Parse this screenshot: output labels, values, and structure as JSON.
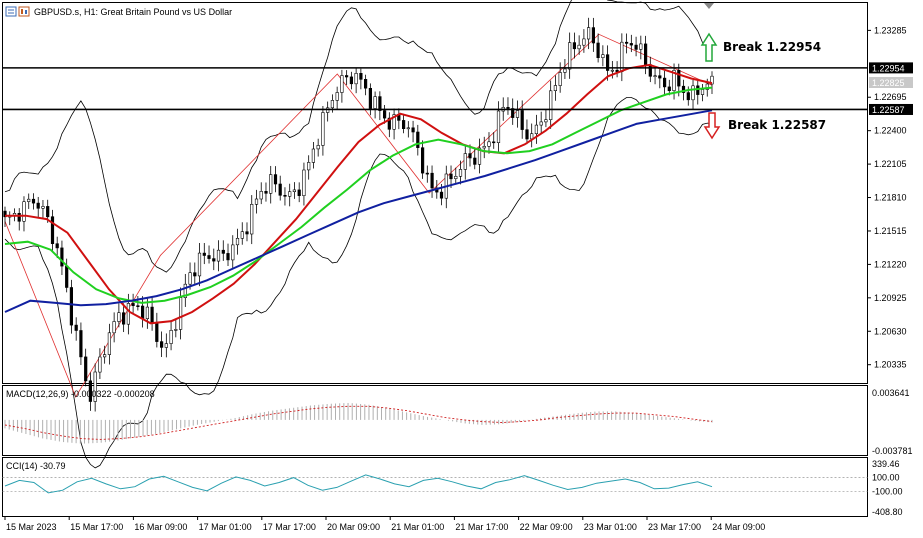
{
  "header": {
    "symbol_title": "GBPUSD.s, H1:  Great Britain Pound vs US Dollar",
    "icons": [
      "chart-window-icon",
      "candles-icon"
    ]
  },
  "annotations": {
    "break_up": "Break 1.22954",
    "break_down": "Break 1.22587",
    "up_arrow_color": "#22a73a",
    "down_arrow_color": "#d62020"
  },
  "chart_data": [
    {
      "type": "candlestick",
      "panel": "price",
      "symbol": "GBPUSD.s",
      "timeframe": "H1",
      "ylim": [
        1.202,
        1.235
      ],
      "y_ticks": [
        "1.23285",
        "1.22695",
        "1.22400",
        "1.22105",
        "1.21810",
        "1.21515",
        "1.21220",
        "1.20925",
        "1.20630",
        "1.20335"
      ],
      "price_tags": [
        {
          "value": "1.22954",
          "style": "black"
        },
        {
          "value": "1.22825",
          "style": "grey"
        },
        {
          "value": "1.22587",
          "style": "black"
        }
      ],
      "horizontal_lines": [
        1.22954,
        1.22587
      ],
      "x_labels": [
        "15 Mar 2023",
        "15 Mar 17:00",
        "16 Mar 09:00",
        "17 Mar 01:00",
        "17 Mar 17:00",
        "20 Mar 09:00",
        "21 Mar 01:00",
        "21 Mar 17:00",
        "22 Mar 09:00",
        "23 Mar 01:00",
        "23 Mar 17:00",
        "24 Mar 09:00"
      ],
      "close_path": [
        1.216,
        1.2165,
        1.2172,
        1.218,
        1.217,
        1.215,
        1.212,
        1.208,
        1.204,
        1.2005,
        1.2035,
        1.206,
        1.2075,
        1.2082,
        1.2085,
        1.208,
        1.206,
        1.2045,
        1.207,
        1.21,
        1.212,
        1.2128,
        1.213,
        1.2128,
        1.2136,
        1.2145,
        1.2165,
        1.2185,
        1.2195,
        1.219,
        1.218,
        1.2188,
        1.2205,
        1.223,
        1.2255,
        1.2275,
        1.2285,
        1.229,
        1.228,
        1.2265,
        1.2255,
        1.2245,
        1.225,
        1.224,
        1.222,
        1.219,
        1.2185,
        1.2195,
        1.2205,
        1.2215,
        1.2218,
        1.2225,
        1.224,
        1.2265,
        1.2255,
        1.224,
        1.2235,
        1.225,
        1.227,
        1.2295,
        1.231,
        1.232,
        1.2325,
        1.231,
        1.229,
        1.23,
        1.232,
        1.2315,
        1.23,
        1.2285,
        1.228,
        1.2285,
        1.2275,
        1.227,
        1.228,
        1.2282
      ],
      "series": [
        {
          "name": "MA fast",
          "color": "#d01010",
          "values": [
            1.2165,
            1.2165,
            1.2162,
            1.215,
            1.2125,
            1.21,
            1.208,
            1.207,
            1.2072,
            1.208,
            1.2092,
            1.2105,
            1.2122,
            1.2142,
            1.2162,
            1.2185,
            1.2208,
            1.223,
            1.2245,
            1.2255,
            1.225,
            1.2238,
            1.2228,
            1.2222,
            1.222,
            1.2228,
            1.224,
            1.2255,
            1.2272,
            1.2288,
            1.2295,
            1.2298,
            1.2292,
            1.2286,
            1.2282
          ]
        },
        {
          "name": "MA medium",
          "color": "#20d020",
          "values": [
            1.214,
            1.2142,
            1.2135,
            1.2115,
            1.21,
            1.2092,
            1.2088,
            1.209,
            1.2095,
            1.2102,
            1.2112,
            1.2125,
            1.214,
            1.2155,
            1.2172,
            1.2188,
            1.2205,
            1.2218,
            1.2228,
            1.2232,
            1.2228,
            1.2222,
            1.222,
            1.2222,
            1.2228,
            1.2238,
            1.2248,
            1.2258,
            1.2265,
            1.2272,
            1.2276,
            1.2278
          ]
        },
        {
          "name": "MA slow",
          "color": "#1020a0",
          "values": [
            1.208,
            1.209,
            1.2088,
            1.2086,
            1.2087,
            1.209,
            1.2094,
            1.21,
            1.2108,
            1.2118,
            1.2128,
            1.2138,
            1.2148,
            1.2158,
            1.2168,
            1.2176,
            1.2182,
            1.2188,
            1.2194,
            1.22,
            1.2207,
            1.2214,
            1.2222,
            1.223,
            1.2238,
            1.2246,
            1.225,
            1.2254,
            1.2258
          ]
        }
      ]
    },
    {
      "type": "bar",
      "panel": "macd",
      "title": "MACD(12,26,9) -0.000322 -0.000208",
      "y_ticks": [
        "0.003641",
        "-0.003781"
      ],
      "ylim": [
        -0.003781,
        0.003641
      ],
      "histogram": [
        -0.001,
        -0.0016,
        -0.0022,
        -0.0026,
        -0.0028,
        -0.0027,
        -0.0024,
        -0.002,
        -0.0016,
        -0.0011,
        -0.0006,
        -0.0002,
        0.0002,
        0.0007,
        0.0011,
        0.0014,
        0.0017,
        0.0019,
        0.002,
        0.0018,
        0.0014,
        0.0009,
        0.0004,
        0.0,
        -0.0004,
        -0.0006,
        -0.0005,
        -0.0002,
        0.0002,
        0.0005,
        0.0008,
        0.001,
        0.001,
        0.0008,
        0.0005,
        0.0002,
        -0.0001,
        -0.0003
      ],
      "signal": [
        -0.0006,
        -0.001,
        -0.0015,
        -0.0019,
        -0.0022,
        -0.0023,
        -0.0022,
        -0.002,
        -0.0017,
        -0.0013,
        -0.0009,
        -0.0005,
        -0.0001,
        0.0003,
        0.0007,
        0.001,
        0.0013,
        0.0015,
        0.0016,
        0.0016,
        0.0014,
        0.0011,
        0.0007,
        0.0003,
        0.0,
        -0.0002,
        -0.0003,
        -0.0002,
        0.0,
        0.0003,
        0.0005,
        0.0007,
        0.0008,
        0.0008,
        0.0006,
        0.0004,
        0.0001,
        -0.0002
      ]
    },
    {
      "type": "line",
      "panel": "cci",
      "title": "CCI(14) -30.79",
      "y_ticks": [
        "339.46",
        "100.00",
        "-100.00",
        "-408.80"
      ],
      "ylim": [
        -408.8,
        339.46
      ],
      "levels": [
        100,
        -100
      ],
      "values": [
        -20,
        60,
        30,
        -120,
        -80,
        40,
        90,
        10,
        -60,
        -30,
        80,
        120,
        40,
        -40,
        -90,
        20,
        110,
        60,
        -20,
        30,
        100,
        -10,
        -80,
        -40,
        50,
        140,
        80,
        10,
        -30,
        60,
        90,
        40,
        -20,
        -60,
        30,
        70,
        130,
        60,
        -10,
        -70,
        -40,
        20,
        50,
        80,
        30,
        -60,
        -50,
        0,
        40,
        -31
      ]
    }
  ]
}
